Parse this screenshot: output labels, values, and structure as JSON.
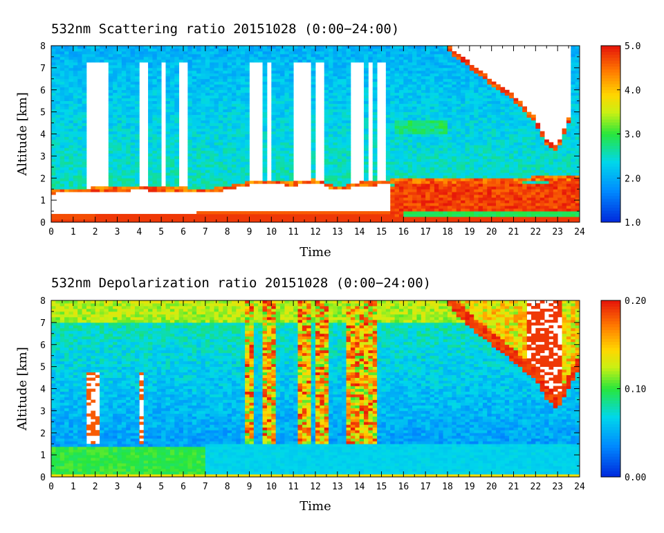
{
  "chart_data": [
    {
      "type": "heatmap",
      "title": "532nm Scattering ratio  20151028 (0:00−24:00)",
      "xlabel": "Time",
      "ylabel": "Altitude [km]",
      "xlim": [
        0,
        24
      ],
      "ylim": [
        0,
        8
      ],
      "x_ticks": [
        "0",
        "1",
        "2",
        "3",
        "4",
        "5",
        "6",
        "7",
        "8",
        "9",
        "10",
        "11",
        "12",
        "13",
        "14",
        "15",
        "16",
        "17",
        "18",
        "19",
        "20",
        "21",
        "22",
        "23",
        "24"
      ],
      "y_ticks": [
        "0",
        "1",
        "2",
        "3",
        "4",
        "5",
        "6",
        "7",
        "8"
      ],
      "colorbar": {
        "range": [
          1.0,
          5.0
        ],
        "tick_values": [
          1.0,
          2.0,
          3.0,
          4.0,
          5.0
        ],
        "tick_labels": [
          "1.0",
          "2.0",
          "3.0",
          "4.0",
          "5.0"
        ]
      },
      "features": [
        {
          "kind": "boundary_layer_top",
          "points": [
            [
              0,
              1.35
            ],
            [
              2,
              1.45
            ],
            [
              4,
              1.5
            ],
            [
              6,
              1.45
            ],
            [
              7,
              1.4
            ],
            [
              8,
              1.5
            ],
            [
              9,
              1.75
            ],
            [
              10,
              1.8
            ],
            [
              11,
              1.7
            ],
            [
              12,
              1.85
            ],
            [
              13,
              1.5
            ],
            [
              14,
              1.7
            ],
            [
              15,
              1.75
            ],
            [
              16,
              1.9
            ],
            [
              18,
              1.9
            ],
            [
              20,
              1.9
            ],
            [
              22,
              1.95
            ],
            [
              24,
              2.0
            ]
          ]
        },
        {
          "kind": "dense_low_cloud",
          "value": 5.0,
          "x_range": [
            15.5,
            24
          ],
          "alt_range": [
            0.3,
            1.5
          ]
        },
        {
          "kind": "high_cloud",
          "x_range": [
            18,
            23.7
          ],
          "base_points": [
            [
              18,
              7.8
            ],
            [
              19,
              7.0
            ],
            [
              20,
              6.2
            ],
            [
              21,
              5.5
            ],
            [
              22,
              4.5
            ],
            [
              22.5,
              3.5
            ],
            [
              23,
              3.2
            ],
            [
              23.7,
              5.0
            ]
          ]
        },
        {
          "kind": "attenuated_columns",
          "x_centers": [
            1.7,
            2.0,
            2.4,
            4.1,
            4.3,
            5.1,
            6.0,
            9.2,
            9.5,
            9.9,
            11.2,
            11.6,
            12.2,
            13.8,
            14.1,
            14.5,
            15.0
          ]
        }
      ]
    },
    {
      "type": "heatmap",
      "title": "532nm Depolarization ratio  20151028 (0:00−24:00)",
      "xlabel": "Time",
      "ylabel": "Altitude [km]",
      "xlim": [
        0,
        24
      ],
      "ylim": [
        0,
        8
      ],
      "x_ticks": [
        "0",
        "1",
        "2",
        "3",
        "4",
        "5",
        "6",
        "7",
        "8",
        "9",
        "10",
        "11",
        "12",
        "13",
        "14",
        "15",
        "16",
        "17",
        "18",
        "19",
        "20",
        "21",
        "22",
        "23",
        "24"
      ],
      "y_ticks": [
        "0",
        "1",
        "2",
        "3",
        "4",
        "5",
        "6",
        "7",
        "8"
      ],
      "colorbar": {
        "range": [
          0.0,
          0.2
        ],
        "tick_values": [
          0.0,
          0.1,
          0.2
        ],
        "tick_labels": [
          "0.00",
          "0.10",
          "0.20"
        ]
      },
      "features": [
        {
          "kind": "boundary_layer",
          "value": 0.07,
          "x_range": [
            0,
            7
          ],
          "alt_range": [
            0.1,
            1.4
          ]
        },
        {
          "kind": "boundary_layer",
          "value": 0.04,
          "x_range": [
            7,
            24
          ],
          "alt_range": [
            0.1,
            1.5
          ]
        },
        {
          "kind": "high_cloud_edge",
          "value": 0.2,
          "x_range": [
            18,
            24
          ],
          "alt_range": [
            3.0,
            8.0
          ]
        },
        {
          "kind": "cirrus_columns",
          "value": 0.16,
          "x_centers": [
            9.0,
            9.8,
            10.0,
            11.5,
            12.3,
            13.7,
            14.2,
            14.5
          ]
        }
      ]
    }
  ]
}
